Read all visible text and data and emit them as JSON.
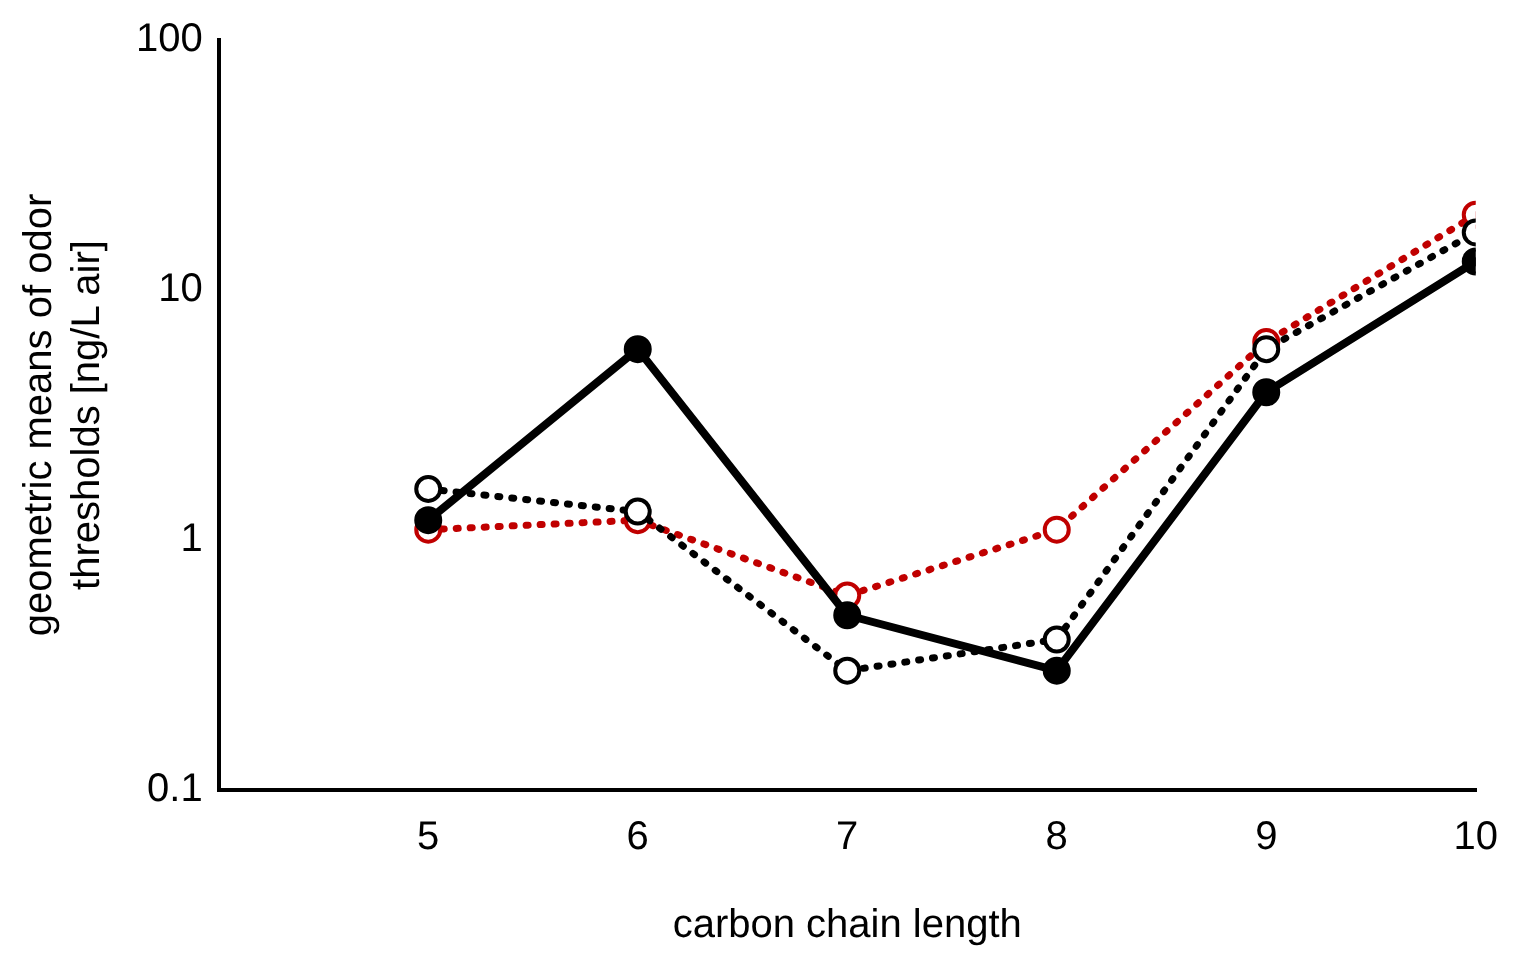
{
  "chart_data": {
    "type": "line",
    "xlabel": "carbon chain length",
    "ylabel": "geometric means of odor thresholds [ng/L air]",
    "x": [
      5,
      6,
      7,
      8,
      9,
      10
    ],
    "xlim": [
      4,
      10
    ],
    "xticks": [
      5,
      6,
      7,
      8,
      9,
      10
    ],
    "ylim": [
      0.1,
      100
    ],
    "yticks": [
      0.1,
      1,
      10,
      100
    ],
    "log": "y",
    "grid": false,
    "legend": false,
    "marker": "circle",
    "series": [
      {
        "color": "#000000",
        "line_style": "dotted",
        "values": [
          1.6,
          1.3,
          0.3,
          0.4,
          5.8,
          17
        ]
      },
      {
        "color": "#000000",
        "line_style": "solid",
        "values": [
          1.2,
          5.8,
          0.5,
          0.3,
          3.9,
          13
        ]
      },
      {
        "color": "#c00000",
        "line_style": "dotted",
        "values": [
          1.1,
          1.2,
          0.6,
          1.1,
          6.2,
          20
        ]
      }
    ]
  }
}
